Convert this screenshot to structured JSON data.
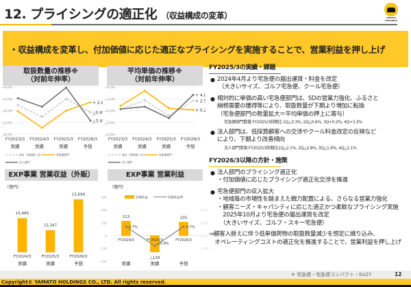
{
  "header": {
    "title": "12. プライシングの適正化",
    "subtitle": "（収益構成の変革）",
    "logo_text": "YAMATO HOLDINGS"
  },
  "banner": "・収益構成を変革し、付加価値に応じた適正なプライシングを実施することで、営業利益を押し上げ",
  "chart_data": [
    {
      "type": "line",
      "title": "取扱数量の推移※",
      "subtitle": "（対前年伸率）",
      "categories": [
        "FY2023/3",
        "FY2024/3",
        "FY2025/3",
        "FY2026/3"
      ],
      "category_sub": [
        "実績",
        "実績",
        "実績",
        "予想"
      ],
      "yticks": [
        "+8.0%",
        "+4.0%",
        "+0.0%",
        "△4.0%",
        "△8.0%"
      ],
      "ylim": [
        -8,
        8
      ],
      "series": [
        {
          "name": "合計（宅急便＋法人）",
          "color": "#c8c8c8",
          "dashed": true,
          "values": [
            1.9,
            -2.1,
            4.0,
            -0.6
          ],
          "end_label": "△0.6%"
        },
        {
          "name": "宅急便部門",
          "color": "#ffb400",
          "values": [
            -0.2,
            -5.8,
            0.0,
            2.8
          ],
          "end_label": "+ 2.8%"
        },
        {
          "name": "法人部門",
          "color": "#707070",
          "values": [
            4.2,
            1.3,
            7.8,
            -3.4
          ],
          "end_label": "△3.4%"
        }
      ]
    },
    {
      "type": "line",
      "title": "平均単価の推移※",
      "subtitle": "（対前年伸率）",
      "categories": [
        "FY2023/3",
        "FY2024/3",
        "FY2025/3",
        "FY2026/3"
      ],
      "category_sub": [
        "実績",
        "実績",
        "実績",
        "予想"
      ],
      "yticks": [
        "+6.0%",
        "+3.0%",
        "+0.0%",
        "△3.0%",
        "△6.0%"
      ],
      "ylim": [
        -6,
        6
      ],
      "series": [
        {
          "name": "合計（宅急便＋法人）",
          "color": "#c8c8c8",
          "dashed": true,
          "values": [
            0.4,
            2.6,
            -1.3,
            2.5
          ],
          "end_label": "+ 2.5%"
        },
        {
          "name": "宅急便部門",
          "color": "#ffb400",
          "values": [
            1.2,
            5.0,
            0.6,
            0.2
          ],
          "end_label": "+ 0.2%"
        },
        {
          "name": "法人部門",
          "color": "#707070",
          "values": [
            0.4,
            1.0,
            -1.9,
            4.0
          ],
          "end_label": "+ 4.0%"
        }
      ]
    },
    {
      "type": "bar",
      "title": "EXP事業 営業収益（外販）",
      "unit": "（億円）",
      "categories": [
        "FY2024/3",
        "FY2025/3",
        "FY2026/3"
      ],
      "category_sub": [
        "実績",
        "実績",
        "予想"
      ],
      "values": [
        15485,
        15347,
        15699
      ],
      "labels": [
        "15,485",
        "15,347",
        "15,699"
      ],
      "color": "#ffb400"
    },
    {
      "type": "bar",
      "title": "EXP事業 営業利益",
      "unit": "（億円）",
      "categories": [
        "FY2024/3",
        "FY2025/3",
        "FY2026/3"
      ],
      "category_sub": [
        "実績",
        "実績",
        "予想"
      ],
      "ylim": [
        -200,
        300
      ],
      "yticks": [
        "300",
        "200",
        "100",
        "0",
        "-100",
        "-200"
      ],
      "y2ticks": [
        "2.0%",
        "1.0%",
        "0.0%",
        "-1.0%"
      ],
      "y2lim": [
        -1,
        2
      ],
      "series": [
        {
          "name": "営業利益",
          "type": "bar",
          "color": "#ffb400",
          "values": [
            113,
            -128,
            105
          ],
          "labels": [
            "113",
            "△128",
            "105"
          ]
        },
        {
          "name": "営業利益率",
          "type": "line",
          "color": "#808080",
          "values": [
            0.7,
            -0.8,
            0.7
          ],
          "labels": [
            "0.7%",
            "△0.8%",
            "0.7%"
          ]
        }
      ]
    }
  ],
  "right": {
    "sec1": "FY2025/3の実績・課題",
    "b1": [
      "2024年4月より宅急便の届出運賃・料金を改定",
      "（大きいサイズ、ゴルフ宅急便、クール宅急便）"
    ],
    "b2": [
      "相対的に単価の高い宅急便部門は、SDの営業力強化、ふるさと",
      "納税需要の獲得等により、取扱数量が下期より増加に転換",
      "（宅急便部門の数量拡大＝平均単価の押上に寄与）"
    ],
    "b2note": "宅急便部門数量 FY2025/3前期比 1Q△3.3%, 2Q△0.6%, 3Q+0.2%, 4Q+3.3%",
    "b3": [
      "法人部門は、低採算顧客への交渉やクール料金改定の反映など",
      "により、下期より改善傾向"
    ],
    "b3note": "法人部門単価 FY2025/3前期比1Q△2.1%, 2Q△2.8%, 3Q△1.6%, 4Q△1.1%",
    "sec2": "FY2026/3以降の方針・施策",
    "c1": [
      "法人部門のプライシング適正化",
      "・付加価値に応じたプライシング適正化交渉を推進"
    ],
    "c2": [
      "宅急便部門の収入拡大",
      "・地域毎の市場性を踏まえた戦力配置による、さらなる営業力強化",
      "・顧客ニーズ・キャパシティに応じた適正かつ柔軟なプライシング実施",
      "　2025年10月より宅急便の届出運賃を改定",
      "　（大きいサイズ、ゴルフ・スキー宅急便）"
    ],
    "conclusion": [
      "⇒顧客入替えに伴う低単価荷物の取扱数量減少を想定に織り込み、",
      "　オペレーティングコストの適正化を推進することで、営業利益を押し上げ"
    ]
  },
  "footer": {
    "note": "※ 宅急便・宅急便コンパクト・EAZY",
    "page": "12",
    "copyright": "Copyright© YAMATO HOLDINGS CO., LTD. All rights reserved."
  }
}
